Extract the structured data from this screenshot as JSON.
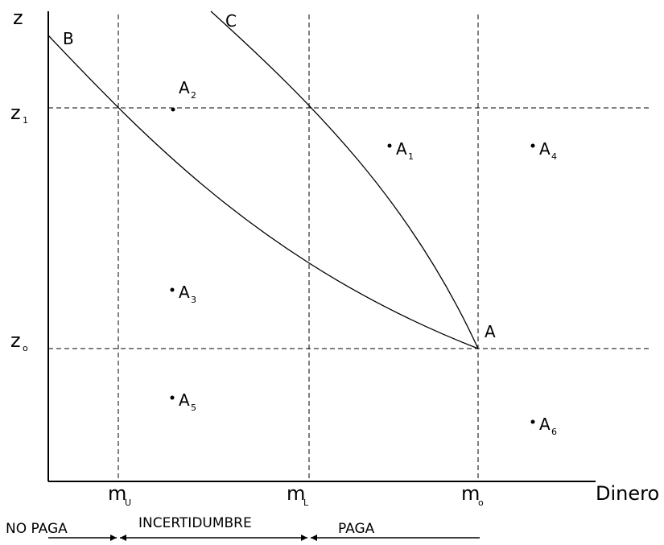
{
  "axes": {
    "y_label": "z",
    "x_label": "Dinero"
  },
  "y_ticks": [
    {
      "main": "z",
      "sub": "1"
    },
    {
      "main": "z",
      "sub": "o"
    }
  ],
  "x_ticks": [
    {
      "main": "m",
      "sub": "U"
    },
    {
      "main": "m",
      "sub": "L"
    },
    {
      "main": "m",
      "sub": "o"
    }
  ],
  "curves": [
    {
      "label": "B"
    },
    {
      "label": "C"
    }
  ],
  "point_A": {
    "label": "A"
  },
  "points": [
    {
      "main": "A",
      "sub": "1"
    },
    {
      "main": "A",
      "sub": "2"
    },
    {
      "main": "A",
      "sub": "3"
    },
    {
      "main": "A",
      "sub": "4"
    },
    {
      "main": "A",
      "sub": "5"
    },
    {
      "main": "A",
      "sub": "6"
    }
  ],
  "regions": [
    {
      "label": "NO PAGA"
    },
    {
      "label": "INCERTIDUMBRE"
    },
    {
      "label": "PAGA"
    }
  ]
}
